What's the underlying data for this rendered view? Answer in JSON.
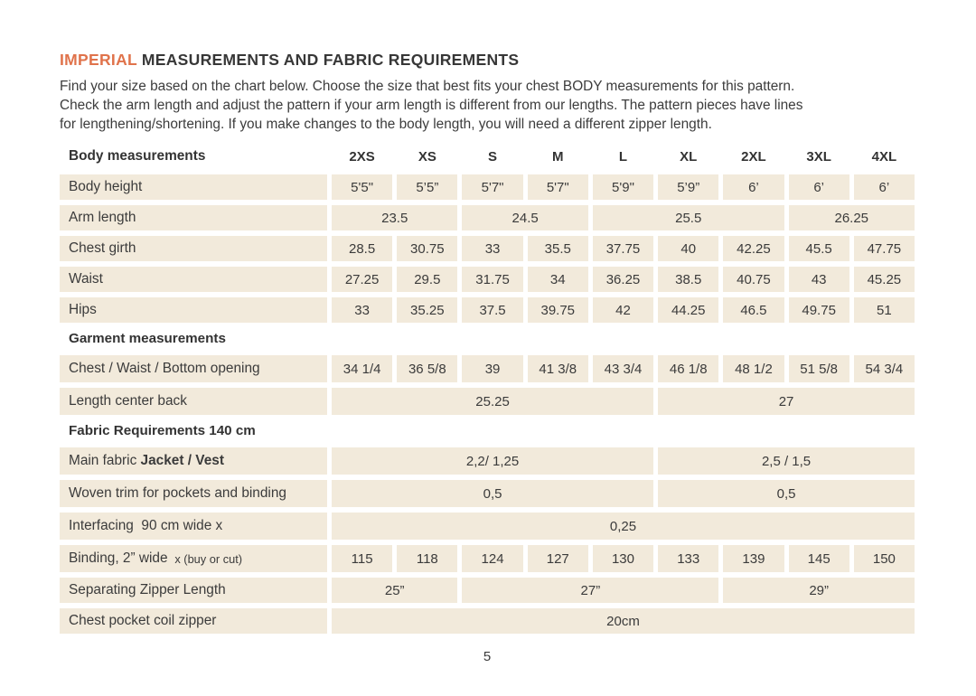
{
  "page": {
    "title_accent": "IMPERIAL",
    "title_rest": " MEASUREMENTS AND FABRIC REQUIREMENTS",
    "intro_lines": [
      "Find your size based on the chart below. Choose the size that best fits your chest BODY measurements for this pattern.",
      "Check the arm length and adjust the pattern if your arm length is different from our lengths. The pattern pieces have lines",
      "for lengthening/shortening. If you make changes to the body length, you will need a different zipper length."
    ],
    "page_number": "5"
  },
  "colors": {
    "accent_orange": "#E0734B",
    "cell_beige": "#F2EADB",
    "text": "#3C3C3C"
  },
  "table": {
    "label_header": "Body measurements",
    "sizes": [
      "2XS",
      "XS",
      "S",
      "M",
      "L",
      "XL",
      "2XL",
      "3XL",
      "4XL"
    ],
    "rows": [
      {
        "kind": "data",
        "label": "Body height",
        "cells": [
          {
            "t": "5'5\"",
            "s": 1
          },
          {
            "t": "5’5”",
            "s": 1
          },
          {
            "t": "5'7\"",
            "s": 1
          },
          {
            "t": "5'7\"",
            "s": 1
          },
          {
            "t": "5'9\"",
            "s": 1
          },
          {
            "t": "5’9”",
            "s": 1
          },
          {
            "t": "6’",
            "s": 1
          },
          {
            "t": "6’",
            "s": 1
          },
          {
            "t": "6’",
            "s": 1
          }
        ]
      },
      {
        "kind": "data",
        "label": "Arm length",
        "cells": [
          {
            "t": "23.5",
            "s": 2
          },
          {
            "t": "24.5",
            "s": 2
          },
          {
            "t": "25.5",
            "s": 3
          },
          {
            "t": "26.25",
            "s": 2
          }
        ]
      },
      {
        "kind": "data",
        "label": "Chest girth",
        "cells": [
          {
            "t": "28.5",
            "s": 1
          },
          {
            "t": "30.75",
            "s": 1
          },
          {
            "t": "33",
            "s": 1
          },
          {
            "t": "35.5",
            "s": 1
          },
          {
            "t": "37.75",
            "s": 1
          },
          {
            "t": "40",
            "s": 1
          },
          {
            "t": "42.25",
            "s": 1
          },
          {
            "t": "45.5",
            "s": 1
          },
          {
            "t": "47.75",
            "s": 1
          }
        ]
      },
      {
        "kind": "data",
        "label": "Waist",
        "cells": [
          {
            "t": "27.25",
            "s": 1
          },
          {
            "t": "29.5",
            "s": 1
          },
          {
            "t": "31.75",
            "s": 1
          },
          {
            "t": "34",
            "s": 1
          },
          {
            "t": "36.25",
            "s": 1
          },
          {
            "t": "38.5",
            "s": 1
          },
          {
            "t": "40.75",
            "s": 1
          },
          {
            "t": "43",
            "s": 1
          },
          {
            "t": "45.25",
            "s": 1
          }
        ]
      },
      {
        "kind": "data",
        "label": "Hips",
        "cells": [
          {
            "t": "33",
            "s": 1
          },
          {
            "t": "35.25",
            "s": 1
          },
          {
            "t": "37.5",
            "s": 1
          },
          {
            "t": "39.75",
            "s": 1
          },
          {
            "t": "42",
            "s": 1
          },
          {
            "t": "44.25",
            "s": 1
          },
          {
            "t": "46.5",
            "s": 1
          },
          {
            "t": "49.75",
            "s": 1
          },
          {
            "t": "51",
            "s": 1
          }
        ]
      },
      {
        "kind": "section",
        "label": "Garment measurements"
      },
      {
        "kind": "data",
        "tall": true,
        "label": "Chest / Waist / Bottom opening",
        "cells": [
          {
            "t": "34 1/4",
            "s": 1
          },
          {
            "t": "36 5/8",
            "s": 1
          },
          {
            "t": "39",
            "s": 1
          },
          {
            "t": "41 3/8",
            "s": 1
          },
          {
            "t": "43 3/4",
            "s": 1
          },
          {
            "t": "46 1/8",
            "s": 1
          },
          {
            "t": "48 1/2",
            "s": 1
          },
          {
            "t": "51 5/8",
            "s": 1
          },
          {
            "t": "54 3/4",
            "s": 1
          }
        ]
      },
      {
        "kind": "data",
        "tall": true,
        "label": "Length center back",
        "cells": [
          {
            "t": "25.25",
            "s": 5
          },
          {
            "t": "27",
            "s": 4
          }
        ]
      },
      {
        "kind": "section",
        "label": "Fabric Requirements 140 cm"
      },
      {
        "kind": "data",
        "tall": true,
        "label": "Main fabric ",
        "label_bold": "Jacket / Vest",
        "cells": [
          {
            "t": "2,2/ 1,25",
            "s": 5
          },
          {
            "t": "2,5 / 1,5",
            "s": 4
          }
        ]
      },
      {
        "kind": "data",
        "tall": true,
        "label": "Woven trim for pockets and binding",
        "cells": [
          {
            "t": "0,5",
            "s": 5
          },
          {
            "t": "0,5",
            "s": 4
          }
        ]
      },
      {
        "kind": "data",
        "tall": true,
        "label": "Interfacing  90 cm wide x",
        "cells": [
          {
            "t": "0,25",
            "s": 9
          }
        ]
      },
      {
        "kind": "data",
        "tall": true,
        "label": "Binding, 2” wide ",
        "label_small": " x (buy or cut)",
        "cells": [
          {
            "t": "115",
            "s": 1
          },
          {
            "t": "118",
            "s": 1
          },
          {
            "t": "124",
            "s": 1
          },
          {
            "t": "127",
            "s": 1
          },
          {
            "t": "130",
            "s": 1
          },
          {
            "t": "133",
            "s": 1
          },
          {
            "t": "139",
            "s": 1
          },
          {
            "t": "145",
            "s": 1
          },
          {
            "t": "150",
            "s": 1
          }
        ]
      },
      {
        "kind": "data",
        "label": "Separating Zipper Length",
        "cells": [
          {
            "t": "25”",
            "s": 2
          },
          {
            "t": "27”",
            "s": 4
          },
          {
            "t": "29”",
            "s": 3
          }
        ]
      },
      {
        "kind": "data",
        "label": "Chest pocket coil zipper",
        "cells": [
          {
            "t": "20cm",
            "s": 9
          }
        ]
      }
    ]
  }
}
